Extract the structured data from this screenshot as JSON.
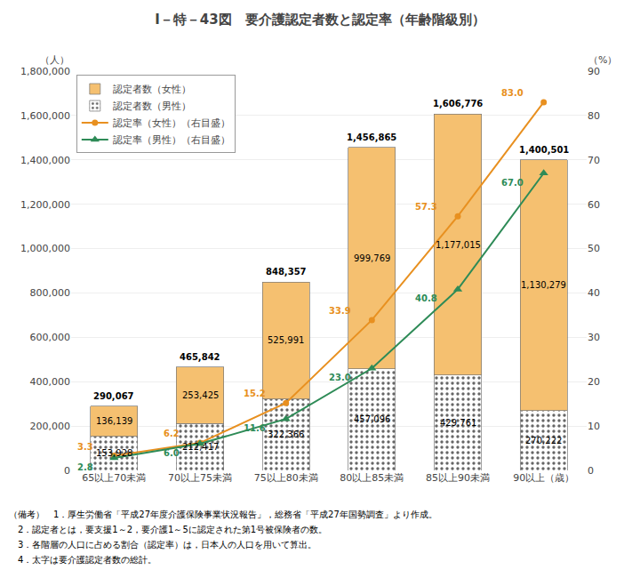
{
  "chart_data": {
    "type": "bar",
    "title": "I－特－43図　要介護認定者数と認定率（年齢階級別）",
    "categories": [
      "65以上70未満",
      "70以上75未満",
      "75以上80未満",
      "80以上85未満",
      "85以上90未満",
      "90以上（歳）"
    ],
    "stacked": true,
    "grid": true,
    "legend": "upper left",
    "data_labels": true,
    "ylabel": "（人）",
    "y2label": "（%）",
    "ylim": [
      0,
      1800000
    ],
    "yticks": [
      0,
      {
        "value": 200000,
        "label": "200,000"
      },
      {
        "value": 400000,
        "label": "400,000"
      },
      {
        "value": 600000,
        "label": "600,000"
      },
      {
        "value": 800000,
        "label": "800,000"
      },
      {
        "value": 1000000,
        "label": "1,000,000"
      },
      {
        "value": 1200000,
        "label": "1,200,000"
      },
      {
        "value": 1400000,
        "label": "1,400,000"
      },
      {
        "value": 1600000,
        "label": "1,600,000"
      },
      {
        "value": 1800000,
        "label": "1,800,000"
      }
    ],
    "y2lim": [
      0,
      90
    ],
    "y2ticks": [
      0,
      10,
      20,
      30,
      40,
      50,
      60,
      70,
      80,
      90
    ],
    "series": [
      {
        "name": "認定者数（男性）",
        "type": "bar",
        "color": "#A8D8C8",
        "marker": "dots",
        "values": [
          153928,
          212417,
          322366,
          457096,
          429761,
          270222
        ],
        "value_labels": [
          "153,928",
          "212,417",
          "322,366",
          "457,096",
          "429,761",
          "270,222"
        ]
      },
      {
        "name": "認定者数（女性）",
        "type": "bar",
        "color": "#F5C070",
        "values": [
          136139,
          253425,
          525991,
          999769,
          1177015,
          1130279
        ],
        "value_labels": [
          "136,139",
          "253,425",
          "525,991",
          "999,769",
          "1,177,015",
          "1,130,279"
        ]
      },
      {
        "name": "認定率（女性）（右目盛）",
        "type": "line",
        "axis": "y2",
        "color": "#E89020",
        "marker": "circle",
        "values": [
          3.3,
          6.2,
          15.2,
          33.9,
          57.3,
          83.0
        ],
        "value_labels": [
          "3.3",
          "6.2",
          "15.2",
          "33.9",
          "57.3",
          "83.0"
        ]
      },
      {
        "name": "認定率（男性）（右目盛）",
        "type": "line",
        "axis": "y2",
        "color": "#2E8B57",
        "marker": "triangle-up",
        "values": [
          2.8,
          6.0,
          11.6,
          23.0,
          40.8,
          67.0
        ],
        "value_labels": [
          "2.8",
          "6.0",
          "11.6",
          "23.0",
          "40.8",
          "67.0"
        ]
      }
    ],
    "totals": [
      290067,
      465842,
      848357,
      1456865,
      1606776,
      1400501
    ],
    "total_labels": [
      "290,067",
      "465,842",
      "848,357",
      "1,456,865",
      "1,606,776",
      "1,400,501"
    ],
    "footnotes": [
      "（備考）　1．厚生労働省「平成27年度介護保険事業状況報告」，総務省「平成27年国勢調査」より作成。",
      "　2．認定者とは，要支援1～2，要介護1～5に認定された第1号被保険者の数。",
      "　3．各階層の人口に占める割合（認定率）は，日本人の人口を用いて算出。",
      "　4．太字は要介護認定者数の総計。"
    ]
  }
}
